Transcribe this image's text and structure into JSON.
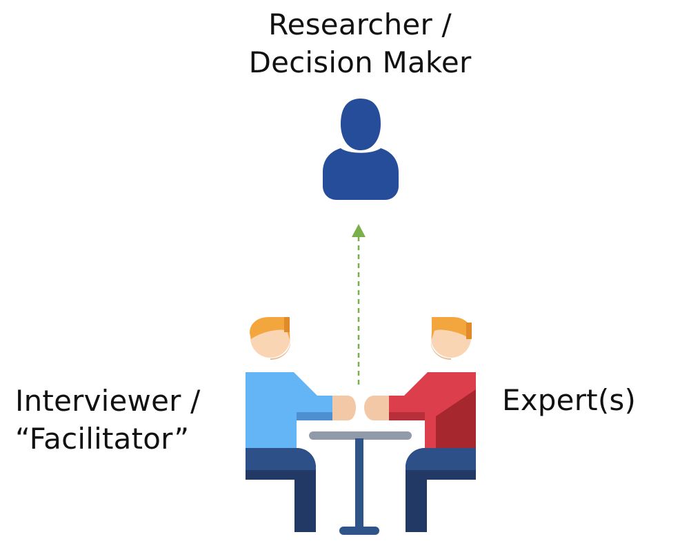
{
  "researcher": {
    "line1": "Researcher /",
    "line2": "Decision Maker",
    "icon": "person-icon"
  },
  "interviewer": {
    "line1": "Interviewer /",
    "line2": "“Facilitator”"
  },
  "expert": {
    "label": "Expert(s)"
  },
  "colors": {
    "researcher": "#264d99",
    "interviewer_shirt": "#64b5f6",
    "expert_shirt": "#dc3e4b",
    "trousers": "#223865",
    "hair": "#f3a63d",
    "skin": "#f9d5b4",
    "table_top": "#909aa9",
    "table_leg": "#2e5489",
    "arrow": "#79b04a"
  }
}
